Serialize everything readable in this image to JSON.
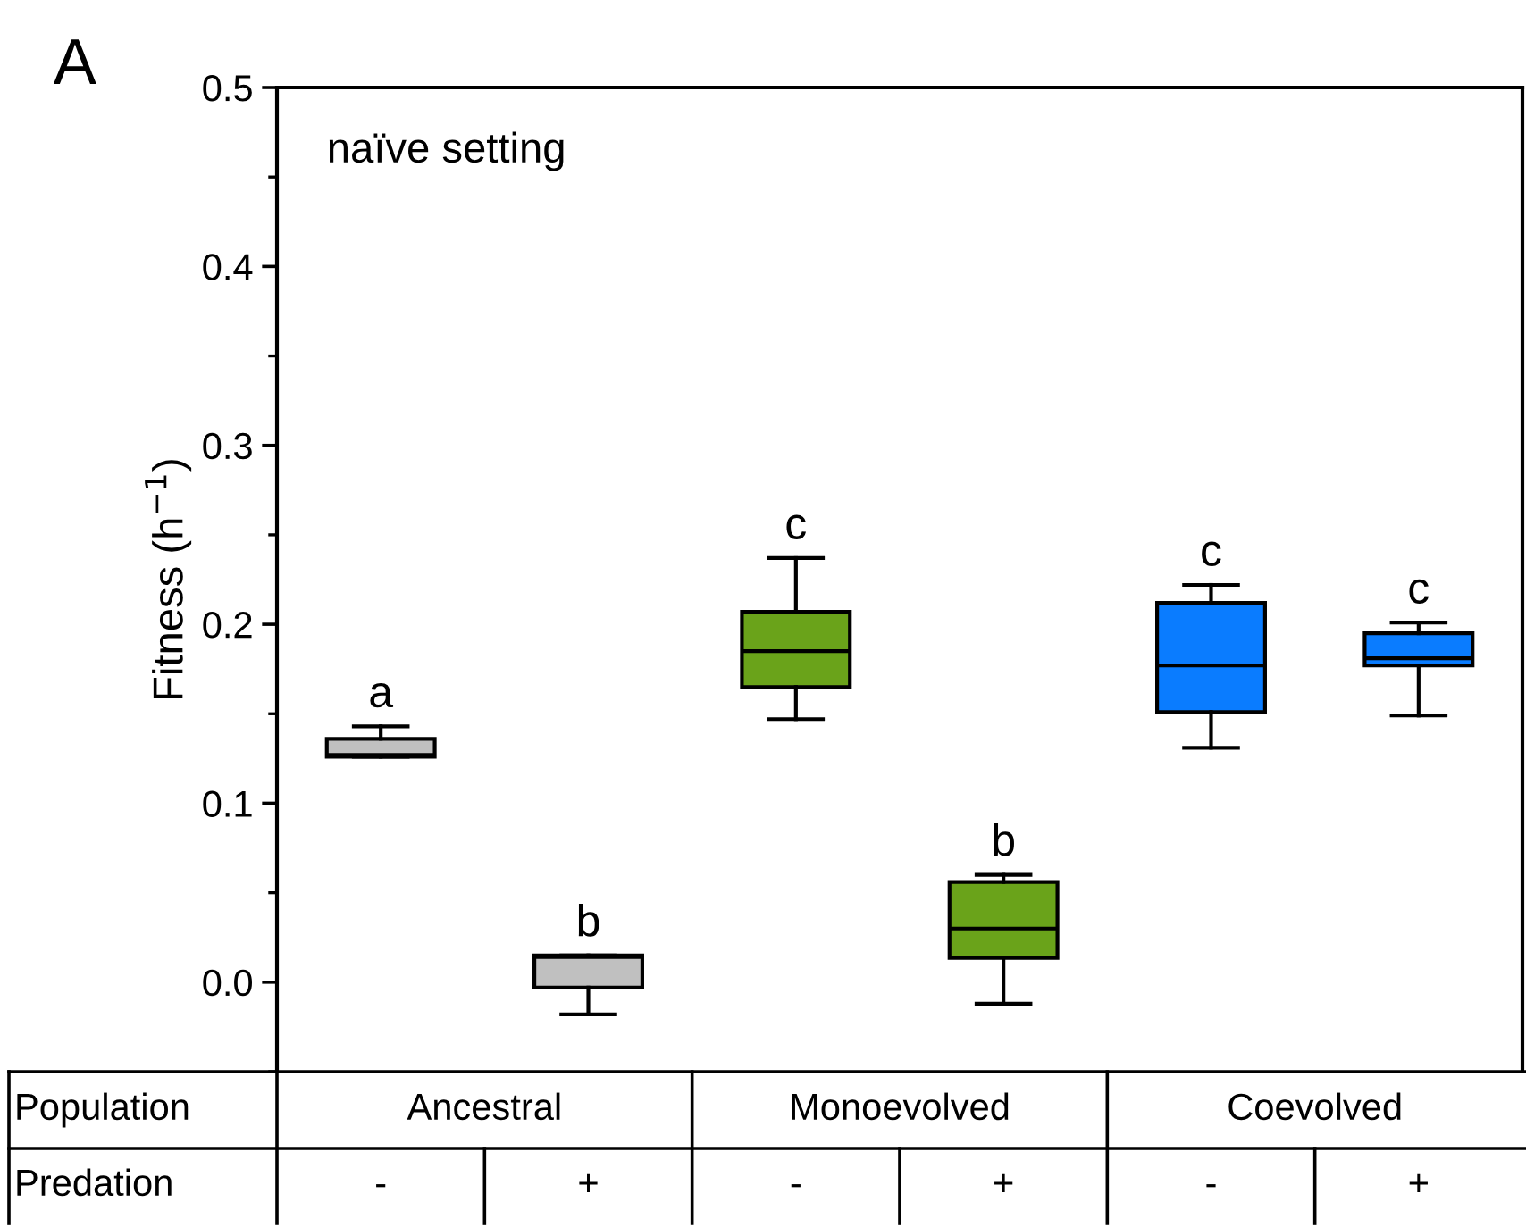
{
  "chart_data": {
    "type": "box",
    "title": "A",
    "subtitle": "naïve setting",
    "ylabel": "Fitness (h$^{−1}$)",
    "categories": [
      "-",
      "+",
      "-",
      "+",
      "-",
      "+"
    ],
    "boxes": [
      {
        "low": 0.126,
        "q1": 0.126,
        "median": 0.127,
        "q3": 0.136,
        "high": 0.143
      },
      {
        "low": -0.018,
        "q1": -0.003,
        "median": 0.014,
        "q3": 0.015,
        "high": 0.015
      },
      {
        "low": 0.147,
        "q1": 0.165,
        "median": 0.185,
        "q3": 0.207,
        "high": 0.237
      },
      {
        "low": -0.012,
        "q1": 0.0135,
        "median": 0.03,
        "q3": 0.056,
        "high": 0.06
      },
      {
        "low": 0.131,
        "q1": 0.151,
        "median": 0.177,
        "q3": 0.212,
        "high": 0.222
      },
      {
        "low": 0.149,
        "q1": 0.177,
        "median": 0.181,
        "q3": 0.195,
        "high": 0.201
      }
    ],
    "colors": [
      "#c0c0c0",
      "#c0c0c0",
      "#6aa31a",
      "#6aa31a",
      "#0a7cff",
      "#0a7cff"
    ],
    "ylim": [
      -0.05,
      0.5
    ],
    "yticks": [
      {
        "value": -0.05,
        "label": null
      },
      {
        "value": 0.0,
        "label": "0.0"
      },
      {
        "value": 0.05,
        "label": null
      },
      0.1,
      {
        "value": 0.15,
        "label": null
      },
      0.2,
      {
        "value": 0.25,
        "label": null
      },
      0.3,
      {
        "value": 0.35,
        "label": null
      },
      0.4,
      {
        "value": 0.45,
        "label": null
      },
      0.5
    ],
    "annotations": [
      "a",
      "b",
      "c",
      "b",
      "c",
      "c",
      "Population",
      "Ancestral",
      "Monoevolved",
      "Coevolved",
      "Predation"
    ],
    "grid": false,
    "legend": false
  }
}
